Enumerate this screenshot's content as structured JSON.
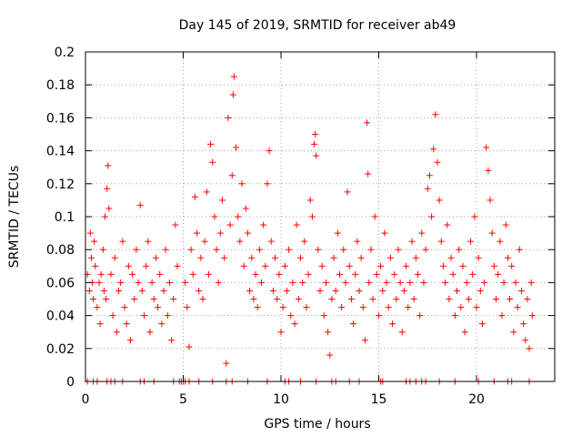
{
  "chart_data": {
    "type": "scatter",
    "title": "Day 145 of 2019, SRMTID for receiver ab49",
    "xlabel": "GPS time / hours",
    "ylabel": "SRMTID / TECUs",
    "xlim": [
      0,
      24
    ],
    "ylim": [
      0,
      0.2
    ],
    "xticks": [
      0,
      5,
      10,
      15,
      20
    ],
    "xtick_labels": [
      "0",
      "5",
      "10",
      "15",
      "20"
    ],
    "yticks": [
      0,
      0.02,
      0.04,
      0.06,
      0.08,
      0.1,
      0.12,
      0.14,
      0.16,
      0.18,
      0.2
    ],
    "ytick_labels": [
      "0",
      "0.02",
      "0.04",
      "0.06",
      "0.08",
      "0.1",
      "0.12",
      "0.14",
      "0.16",
      "0.18",
      "0.2"
    ],
    "grid": true,
    "marker": "+",
    "color": "#ff0000",
    "series": [
      {
        "name": "SRMTID",
        "points": [
          [
            0.1,
            0.065
          ],
          [
            0.2,
            0.055
          ],
          [
            0.25,
            0.09
          ],
          [
            0.3,
            0.075
          ],
          [
            0.35,
            0.06
          ],
          [
            0.4,
            0.05
          ],
          [
            0.45,
            0.085
          ],
          [
            0.5,
            0.07
          ],
          [
            0.6,
            0.045
          ],
          [
            0.7,
            0.06
          ],
          [
            0.75,
            0.035
          ],
          [
            0.8,
            0.065
          ],
          [
            0.9,
            0.08
          ],
          [
            0.95,
            0.055
          ],
          [
            1.0,
            0.1
          ],
          [
            1.05,
            0.05
          ],
          [
            1.1,
            0.117
          ],
          [
            1.15,
            0.131
          ],
          [
            1.2,
            0.105
          ],
          [
            1.3,
            0.065
          ],
          [
            1.4,
            0.04
          ],
          [
            1.5,
            0.075
          ],
          [
            1.6,
            0.03
          ],
          [
            1.7,
            0.055
          ],
          [
            1.8,
            0.06
          ],
          [
            1.9,
            0.085
          ],
          [
            2.0,
            0.045
          ],
          [
            2.1,
            0.035
          ],
          [
            2.2,
            0.07
          ],
          [
            2.3,
            0.025
          ],
          [
            2.4,
            0.065
          ],
          [
            2.5,
            0.05
          ],
          [
            2.6,
            0.08
          ],
          [
            2.7,
            0.06
          ],
          [
            2.8,
            0.107
          ],
          [
            2.9,
            0.055
          ],
          [
            3.0,
            0.04
          ],
          [
            3.1,
            0.07
          ],
          [
            3.2,
            0.085
          ],
          [
            3.3,
            0.03
          ],
          [
            3.4,
            0.06
          ],
          [
            3.5,
            0.05
          ],
          [
            3.6,
            0.075
          ],
          [
            3.7,
            0.045
          ],
          [
            3.8,
            0.065
          ],
          [
            3.9,
            0.035
          ],
          [
            4.0,
            0.055
          ],
          [
            4.1,
            0.08
          ],
          [
            4.2,
            0.04
          ],
          [
            4.3,
            0.06
          ],
          [
            4.4,
            0.025
          ],
          [
            4.5,
            0.05
          ],
          [
            4.6,
            0.095
          ],
          [
            4.7,
            0.07
          ],
          [
            5.1,
            0.06
          ],
          [
            5.2,
            0.045
          ],
          [
            5.3,
            0.021
          ],
          [
            5.4,
            0.08
          ],
          [
            5.5,
            0.065
          ],
          [
            5.6,
            0.112
          ],
          [
            5.7,
            0.09
          ],
          [
            5.8,
            0.055
          ],
          [
            5.9,
            0.075
          ],
          [
            6.0,
            0.05
          ],
          [
            6.1,
            0.085
          ],
          [
            6.2,
            0.115
          ],
          [
            6.3,
            0.065
          ],
          [
            6.4,
            0.144
          ],
          [
            6.5,
            0.133
          ],
          [
            6.6,
            0.1
          ],
          [
            6.7,
            0.08
          ],
          [
            6.8,
            0.06
          ],
          [
            6.9,
            0.09
          ],
          [
            7.0,
            0.11
          ],
          [
            7.1,
            0.075
          ],
          [
            7.2,
            0.011
          ],
          [
            7.3,
            0.16
          ],
          [
            7.4,
            0.095
          ],
          [
            7.5,
            0.125
          ],
          [
            7.55,
            0.174
          ],
          [
            7.6,
            0.185
          ],
          [
            7.7,
            0.142
          ],
          [
            7.8,
            0.1
          ],
          [
            7.9,
            0.085
          ],
          [
            8.0,
            0.12
          ],
          [
            8.1,
            0.07
          ],
          [
            8.2,
            0.105
          ],
          [
            8.3,
            0.09
          ],
          [
            8.4,
            0.055
          ],
          [
            8.5,
            0.075
          ],
          [
            8.6,
            0.05
          ],
          [
            8.7,
            0.065
          ],
          [
            8.8,
            0.045
          ],
          [
            8.9,
            0.08
          ],
          [
            9.0,
            0.06
          ],
          [
            9.1,
            0.095
          ],
          [
            9.2,
            0.07
          ],
          [
            9.3,
            0.12
          ],
          [
            9.4,
            0.14
          ],
          [
            9.5,
            0.085
          ],
          [
            9.6,
            0.055
          ],
          [
            9.7,
            0.075
          ],
          [
            9.8,
            0.05
          ],
          [
            9.9,
            0.065
          ],
          [
            10.0,
            0.03
          ],
          [
            10.1,
            0.045
          ],
          [
            10.2,
            0.07
          ],
          [
            10.3,
            0.055
          ],
          [
            10.4,
            0.08
          ],
          [
            10.5,
            0.04
          ],
          [
            10.6,
            0.06
          ],
          [
            10.7,
            0.035
          ],
          [
            10.8,
            0.095
          ],
          [
            10.9,
            0.05
          ],
          [
            11.0,
            0.075
          ],
          [
            11.1,
            0.06
          ],
          [
            11.2,
            0.085
          ],
          [
            11.3,
            0.045
          ],
          [
            11.4,
            0.065
          ],
          [
            11.5,
            0.11
          ],
          [
            11.6,
            0.1
          ],
          [
            11.7,
            0.144
          ],
          [
            11.75,
            0.15
          ],
          [
            11.8,
            0.137
          ],
          [
            11.9,
            0.08
          ],
          [
            12.0,
            0.055
          ],
          [
            12.1,
            0.07
          ],
          [
            12.2,
            0.04
          ],
          [
            12.3,
            0.06
          ],
          [
            12.4,
            0.03
          ],
          [
            12.5,
            0.016
          ],
          [
            12.6,
            0.05
          ],
          [
            12.7,
            0.075
          ],
          [
            12.8,
            0.055
          ],
          [
            12.9,
            0.09
          ],
          [
            13.0,
            0.065
          ],
          [
            13.1,
            0.045
          ],
          [
            13.2,
            0.08
          ],
          [
            13.3,
            0.06
          ],
          [
            13.4,
            0.115
          ],
          [
            13.5,
            0.07
          ],
          [
            13.6,
            0.05
          ],
          [
            13.7,
            0.035
          ],
          [
            13.8,
            0.065
          ],
          [
            13.9,
            0.085
          ],
          [
            14.0,
            0.055
          ],
          [
            14.1,
            0.075
          ],
          [
            14.2,
            0.045
          ],
          [
            14.3,
            0.025
          ],
          [
            14.4,
            0.157
          ],
          [
            14.45,
            0.126
          ],
          [
            14.5,
            0.06
          ],
          [
            14.6,
            0.08
          ],
          [
            14.7,
            0.05
          ],
          [
            14.8,
            0.1
          ],
          [
            14.9,
            0.065
          ],
          [
            15.0,
            0.04
          ],
          [
            15.1,
            0.07
          ],
          [
            15.2,
            0.055
          ],
          [
            15.3,
            0.09
          ],
          [
            15.4,
            0.06
          ],
          [
            15.5,
            0.045
          ],
          [
            15.6,
            0.075
          ],
          [
            15.7,
            0.035
          ],
          [
            15.8,
            0.065
          ],
          [
            15.9,
            0.05
          ],
          [
            16.0,
            0.08
          ],
          [
            16.1,
            0.06
          ],
          [
            16.2,
            0.03
          ],
          [
            16.3,
            0.055
          ],
          [
            16.4,
            0.07
          ],
          [
            16.5,
            0.045
          ],
          [
            16.6,
            0.06
          ],
          [
            16.7,
            0.085
          ],
          [
            16.8,
            0.05
          ],
          [
            16.9,
            0.075
          ],
          [
            17.0,
            0.065
          ],
          [
            17.1,
            0.04
          ],
          [
            17.2,
            0.09
          ],
          [
            17.3,
            0.06
          ],
          [
            17.4,
            0.08
          ],
          [
            17.5,
            0.117
          ],
          [
            17.6,
            0.125
          ],
          [
            17.7,
            0.1
          ],
          [
            17.8,
            0.141
          ],
          [
            17.9,
            0.162
          ],
          [
            18.0,
            0.133
          ],
          [
            18.1,
            0.11
          ],
          [
            18.2,
            0.085
          ],
          [
            18.3,
            0.07
          ],
          [
            18.4,
            0.06
          ],
          [
            18.5,
            0.095
          ],
          [
            18.6,
            0.05
          ],
          [
            18.7,
            0.075
          ],
          [
            18.8,
            0.065
          ],
          [
            18.9,
            0.04
          ],
          [
            19.0,
            0.055
          ],
          [
            19.1,
            0.08
          ],
          [
            19.2,
            0.045
          ],
          [
            19.3,
            0.07
          ],
          [
            19.4,
            0.03
          ],
          [
            19.5,
            0.06
          ],
          [
            19.6,
            0.05
          ],
          [
            19.7,
            0.085
          ],
          [
            19.8,
            0.065
          ],
          [
            19.9,
            0.1
          ],
          [
            20.0,
            0.045
          ],
          [
            20.1,
            0.075
          ],
          [
            20.2,
            0.055
          ],
          [
            20.3,
            0.035
          ],
          [
            20.4,
            0.06
          ],
          [
            20.5,
            0.142
          ],
          [
            20.6,
            0.128
          ],
          [
            20.7,
            0.11
          ],
          [
            20.8,
            0.09
          ],
          [
            20.9,
            0.07
          ],
          [
            21.0,
            0.05
          ],
          [
            21.1,
            0.065
          ],
          [
            21.2,
            0.085
          ],
          [
            21.3,
            0.04
          ],
          [
            21.4,
            0.06
          ],
          [
            21.5,
            0.095
          ],
          [
            21.6,
            0.075
          ],
          [
            21.7,
            0.05
          ],
          [
            21.8,
            0.07
          ],
          [
            21.9,
            0.03
          ],
          [
            22.0,
            0.06
          ],
          [
            22.1,
            0.045
          ],
          [
            22.2,
            0.08
          ],
          [
            22.3,
            0.055
          ],
          [
            22.4,
            0.035
          ],
          [
            22.5,
            0.025
          ],
          [
            22.6,
            0.05
          ],
          [
            22.7,
            0.02
          ],
          [
            22.8,
            0.06
          ],
          [
            22.85,
            0.04
          ]
        ]
      }
    ],
    "zero_points_x": [
      0.1,
      0.4,
      0.6,
      1.1,
      1.3,
      1.5,
      1.9,
      2.8,
      3.0,
      3.5,
      4.5,
      4.8,
      4.9,
      5.0,
      5.1,
      5.3,
      5.8,
      6.5,
      7.2,
      7.5,
      8.3,
      9.3,
      10.2,
      10.4,
      11.0,
      11.8,
      12.6,
      12.8,
      13.5,
      14.0,
      15.1,
      15.2,
      16.4,
      16.6,
      16.9,
      17.2,
      17.4,
      18.1,
      18.9,
      20.1,
      20.9,
      21.6,
      21.8,
      22.7
    ]
  }
}
